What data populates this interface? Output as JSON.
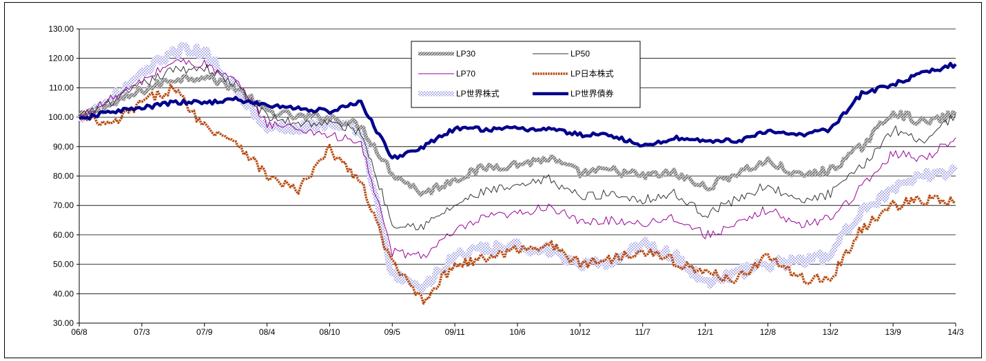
{
  "chart_data": {
    "type": "line",
    "title": "",
    "xlabel": "",
    "ylabel": "",
    "ylim": [
      30,
      130
    ],
    "yticks": [
      "130.00",
      "120.00",
      "110.00",
      "100.00",
      "90.00",
      "80.00",
      "70.00",
      "60.00",
      "50.00",
      "40.00",
      "30.00"
    ],
    "xticks": [
      "06/8",
      "07/3",
      "07/9",
      "08/4",
      "08/10",
      "09/5",
      "09/11",
      "10/6",
      "10/12",
      "11/7",
      "12/1",
      "12/8",
      "13/2",
      "13/9",
      "14/3"
    ],
    "grid": "horizontal",
    "legend_position": "top-center",
    "series": [
      {
        "name": "LP30",
        "color": "#8c8c8c",
        "style": "hatched-thick",
        "x": [
          0,
          0.5,
          1,
          1.5,
          2,
          2.5,
          3,
          3.5,
          4,
          4.5,
          5,
          5.5,
          6,
          6.5,
          7,
          7.5,
          8,
          8.5,
          9,
          9.5,
          10,
          10.5,
          11,
          11.5,
          12,
          12.5,
          13,
          13.5,
          14
        ],
        "values": [
          100,
          104,
          109,
          113,
          114,
          110,
          102,
          100,
          100,
          97,
          81,
          74,
          79,
          83,
          84,
          86,
          81,
          82,
          80,
          81,
          76,
          81,
          85,
          80,
          82,
          90,
          102,
          98,
          101
        ]
      },
      {
        "name": "LP50",
        "color": "#333333",
        "style": "thin",
        "x": [
          0,
          0.5,
          1,
          1.5,
          2,
          2.5,
          3,
          3.5,
          4,
          4.5,
          5,
          5.5,
          6,
          6.5,
          7,
          7.5,
          8,
          8.5,
          9,
          9.5,
          10,
          10.5,
          11,
          11.5,
          12,
          12.5,
          13,
          13.5,
          14
        ],
        "values": [
          100,
          105,
          111,
          116,
          117,
          111,
          100,
          98,
          98,
          95,
          64,
          63,
          70,
          75,
          76,
          79,
          73,
          74,
          72,
          74,
          67,
          72,
          77,
          71,
          74,
          83,
          96,
          92,
          101
        ]
      },
      {
        "name": "LP70",
        "color": "#990099",
        "style": "thin",
        "x": [
          0,
          0.5,
          1,
          1.5,
          2,
          2.5,
          3,
          3.5,
          4,
          4.5,
          5,
          5.5,
          6,
          6.5,
          7,
          7.5,
          8,
          8.5,
          9,
          9.5,
          10,
          10.5,
          11,
          11.5,
          12,
          12.5,
          13,
          13.5,
          14
        ],
        "values": [
          100,
          106,
          112,
          119,
          118,
          112,
          98,
          96,
          94,
          91,
          54,
          53,
          61,
          66,
          67,
          70,
          64,
          65,
          64,
          66,
          60,
          63,
          69,
          63,
          66,
          76,
          88,
          86,
          93
        ]
      },
      {
        "name": "LP日本株式",
        "color": "#b84a10",
        "style": "dotted-thick",
        "x": [
          0,
          0.5,
          1,
          1.5,
          2,
          2.5,
          3,
          3.5,
          4,
          4.5,
          5,
          5.5,
          6,
          6.5,
          7,
          7.5,
          8,
          8.5,
          9,
          9.5,
          10,
          10.5,
          11,
          11.5,
          12,
          12.5,
          13,
          13.5,
          14
        ],
        "values": [
          100,
          97,
          105,
          110,
          97,
          92,
          80,
          75,
          89,
          78,
          50,
          38,
          50,
          52,
          55,
          57,
          50,
          52,
          55,
          51,
          47,
          45,
          53,
          45,
          45,
          62,
          70,
          72,
          71
        ]
      },
      {
        "name": "LP世界株式",
        "color": "#8a8ad8",
        "style": "dotted-band",
        "x": [
          0,
          0.5,
          1,
          1.5,
          2,
          2.5,
          3,
          3.5,
          4,
          4.5,
          5,
          5.5,
          6,
          6.5,
          7,
          7.5,
          8,
          8.5,
          9,
          9.5,
          10,
          10.5,
          11,
          11.5,
          12,
          12.5,
          13,
          13.5,
          14
        ],
        "values": [
          100,
          106,
          114,
          123,
          122,
          110,
          96,
          97,
          98,
          96,
          46,
          42,
          53,
          55,
          56,
          55,
          49,
          51,
          57,
          53,
          44,
          47,
          50,
          51,
          53,
          69,
          75,
          80,
          82
        ]
      },
      {
        "name": "LP世界債券",
        "color": "#00008b",
        "style": "solid-thick",
        "x": [
          0,
          0.5,
          1,
          1.5,
          2,
          2.5,
          3,
          3.5,
          4,
          4.5,
          5,
          5.5,
          6,
          6.5,
          7,
          7.5,
          8,
          8.5,
          9,
          9.5,
          10,
          10.5,
          11,
          11.5,
          12,
          12.5,
          13,
          13.5,
          14
        ],
        "values": [
          99,
          102,
          103,
          105,
          105,
          106,
          104,
          103,
          102,
          105,
          86,
          90,
          96,
          96,
          96,
          96,
          94,
          94,
          90,
          93,
          92,
          92,
          95,
          94,
          96,
          108,
          111,
          115,
          118
        ]
      }
    ]
  }
}
